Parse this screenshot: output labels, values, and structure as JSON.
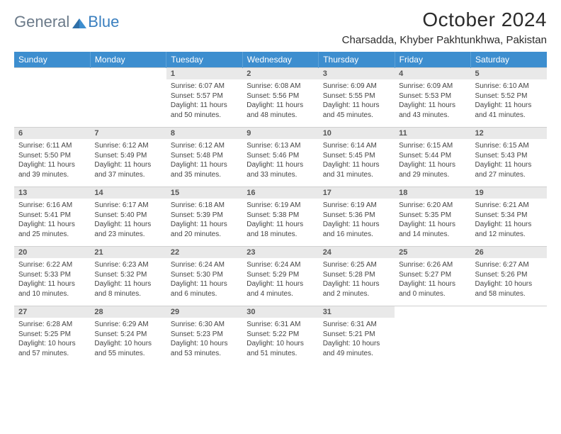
{
  "brand": {
    "text1": "General",
    "text2": "Blue",
    "color_gray": "#6b7a89",
    "color_blue": "#3a7fbf"
  },
  "title": "October 2024",
  "location": "Charsadda, Khyber Pakhtunkhwa, Pakistan",
  "styling": {
    "header_bg": "#3d8ecf",
    "header_fg": "#ffffff",
    "daynum_bg": "#e9e9e9",
    "daynum_fg": "#555555",
    "body_fg": "#444444",
    "page_bg": "#ffffff",
    "title_fontsize": 28,
    "location_fontsize": 15,
    "dayheader_fontsize": 12,
    "daynum_fontsize": 11,
    "detail_fontsize": 10
  },
  "day_headers": [
    "Sunday",
    "Monday",
    "Tuesday",
    "Wednesday",
    "Thursday",
    "Friday",
    "Saturday"
  ],
  "weeks": [
    [
      null,
      null,
      {
        "n": "1",
        "sr": "Sunrise: 6:07 AM",
        "ss": "Sunset: 5:57 PM",
        "dl": "Daylight: 11 hours and 50 minutes."
      },
      {
        "n": "2",
        "sr": "Sunrise: 6:08 AM",
        "ss": "Sunset: 5:56 PM",
        "dl": "Daylight: 11 hours and 48 minutes."
      },
      {
        "n": "3",
        "sr": "Sunrise: 6:09 AM",
        "ss": "Sunset: 5:55 PM",
        "dl": "Daylight: 11 hours and 45 minutes."
      },
      {
        "n": "4",
        "sr": "Sunrise: 6:09 AM",
        "ss": "Sunset: 5:53 PM",
        "dl": "Daylight: 11 hours and 43 minutes."
      },
      {
        "n": "5",
        "sr": "Sunrise: 6:10 AM",
        "ss": "Sunset: 5:52 PM",
        "dl": "Daylight: 11 hours and 41 minutes."
      }
    ],
    [
      {
        "n": "6",
        "sr": "Sunrise: 6:11 AM",
        "ss": "Sunset: 5:50 PM",
        "dl": "Daylight: 11 hours and 39 minutes."
      },
      {
        "n": "7",
        "sr": "Sunrise: 6:12 AM",
        "ss": "Sunset: 5:49 PM",
        "dl": "Daylight: 11 hours and 37 minutes."
      },
      {
        "n": "8",
        "sr": "Sunrise: 6:12 AM",
        "ss": "Sunset: 5:48 PM",
        "dl": "Daylight: 11 hours and 35 minutes."
      },
      {
        "n": "9",
        "sr": "Sunrise: 6:13 AM",
        "ss": "Sunset: 5:46 PM",
        "dl": "Daylight: 11 hours and 33 minutes."
      },
      {
        "n": "10",
        "sr": "Sunrise: 6:14 AM",
        "ss": "Sunset: 5:45 PM",
        "dl": "Daylight: 11 hours and 31 minutes."
      },
      {
        "n": "11",
        "sr": "Sunrise: 6:15 AM",
        "ss": "Sunset: 5:44 PM",
        "dl": "Daylight: 11 hours and 29 minutes."
      },
      {
        "n": "12",
        "sr": "Sunrise: 6:15 AM",
        "ss": "Sunset: 5:43 PM",
        "dl": "Daylight: 11 hours and 27 minutes."
      }
    ],
    [
      {
        "n": "13",
        "sr": "Sunrise: 6:16 AM",
        "ss": "Sunset: 5:41 PM",
        "dl": "Daylight: 11 hours and 25 minutes."
      },
      {
        "n": "14",
        "sr": "Sunrise: 6:17 AM",
        "ss": "Sunset: 5:40 PM",
        "dl": "Daylight: 11 hours and 23 minutes."
      },
      {
        "n": "15",
        "sr": "Sunrise: 6:18 AM",
        "ss": "Sunset: 5:39 PM",
        "dl": "Daylight: 11 hours and 20 minutes."
      },
      {
        "n": "16",
        "sr": "Sunrise: 6:19 AM",
        "ss": "Sunset: 5:38 PM",
        "dl": "Daylight: 11 hours and 18 minutes."
      },
      {
        "n": "17",
        "sr": "Sunrise: 6:19 AM",
        "ss": "Sunset: 5:36 PM",
        "dl": "Daylight: 11 hours and 16 minutes."
      },
      {
        "n": "18",
        "sr": "Sunrise: 6:20 AM",
        "ss": "Sunset: 5:35 PM",
        "dl": "Daylight: 11 hours and 14 minutes."
      },
      {
        "n": "19",
        "sr": "Sunrise: 6:21 AM",
        "ss": "Sunset: 5:34 PM",
        "dl": "Daylight: 11 hours and 12 minutes."
      }
    ],
    [
      {
        "n": "20",
        "sr": "Sunrise: 6:22 AM",
        "ss": "Sunset: 5:33 PM",
        "dl": "Daylight: 11 hours and 10 minutes."
      },
      {
        "n": "21",
        "sr": "Sunrise: 6:23 AM",
        "ss": "Sunset: 5:32 PM",
        "dl": "Daylight: 11 hours and 8 minutes."
      },
      {
        "n": "22",
        "sr": "Sunrise: 6:24 AM",
        "ss": "Sunset: 5:30 PM",
        "dl": "Daylight: 11 hours and 6 minutes."
      },
      {
        "n": "23",
        "sr": "Sunrise: 6:24 AM",
        "ss": "Sunset: 5:29 PM",
        "dl": "Daylight: 11 hours and 4 minutes."
      },
      {
        "n": "24",
        "sr": "Sunrise: 6:25 AM",
        "ss": "Sunset: 5:28 PM",
        "dl": "Daylight: 11 hours and 2 minutes."
      },
      {
        "n": "25",
        "sr": "Sunrise: 6:26 AM",
        "ss": "Sunset: 5:27 PM",
        "dl": "Daylight: 11 hours and 0 minutes."
      },
      {
        "n": "26",
        "sr": "Sunrise: 6:27 AM",
        "ss": "Sunset: 5:26 PM",
        "dl": "Daylight: 10 hours and 58 minutes."
      }
    ],
    [
      {
        "n": "27",
        "sr": "Sunrise: 6:28 AM",
        "ss": "Sunset: 5:25 PM",
        "dl": "Daylight: 10 hours and 57 minutes."
      },
      {
        "n": "28",
        "sr": "Sunrise: 6:29 AM",
        "ss": "Sunset: 5:24 PM",
        "dl": "Daylight: 10 hours and 55 minutes."
      },
      {
        "n": "29",
        "sr": "Sunrise: 6:30 AM",
        "ss": "Sunset: 5:23 PM",
        "dl": "Daylight: 10 hours and 53 minutes."
      },
      {
        "n": "30",
        "sr": "Sunrise: 6:31 AM",
        "ss": "Sunset: 5:22 PM",
        "dl": "Daylight: 10 hours and 51 minutes."
      },
      {
        "n": "31",
        "sr": "Sunrise: 6:31 AM",
        "ss": "Sunset: 5:21 PM",
        "dl": "Daylight: 10 hours and 49 minutes."
      },
      null,
      null
    ]
  ]
}
